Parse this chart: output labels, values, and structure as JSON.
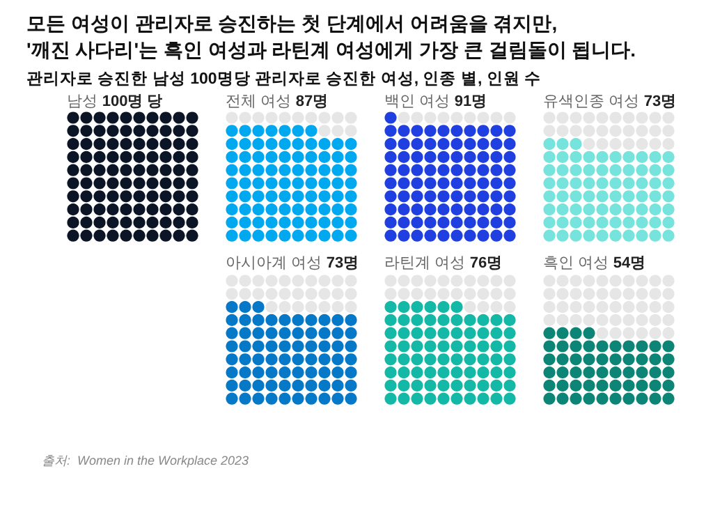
{
  "chart_data": {
    "type": "other",
    "title": "모든 여성이 관리자로 승진하는 첫 단계에서 어려움을 겪지만,\n'깨진 사다리'는 흑인 여성과 라틴계 여성에게 가장 큰 걸림돌이 됩니다.",
    "subtitle": "관리자로 승진한 남성 100명당 관리자로 승진한 여성, 인종 별, 인원 수",
    "categories": [
      "남성",
      "전체 여성",
      "백인 여성",
      "유색인종 여성",
      "아시아계 여성",
      "라틴계 여성",
      "흑인 여성"
    ],
    "values": [
      100,
      87,
      91,
      73,
      73,
      76,
      54
    ],
    "value_labels": [
      "100명 당",
      "87명",
      "91명",
      "73명",
      "73명",
      "76명",
      "54명"
    ],
    "colors": [
      "#0b1526",
      "#00a8f0",
      "#1f3fe0",
      "#76e3dd",
      "#0678c8",
      "#14b8a6",
      "#0d8576"
    ],
    "annotations": [
      "출처:  Women in the Workplace 2023"
    ]
  }
}
